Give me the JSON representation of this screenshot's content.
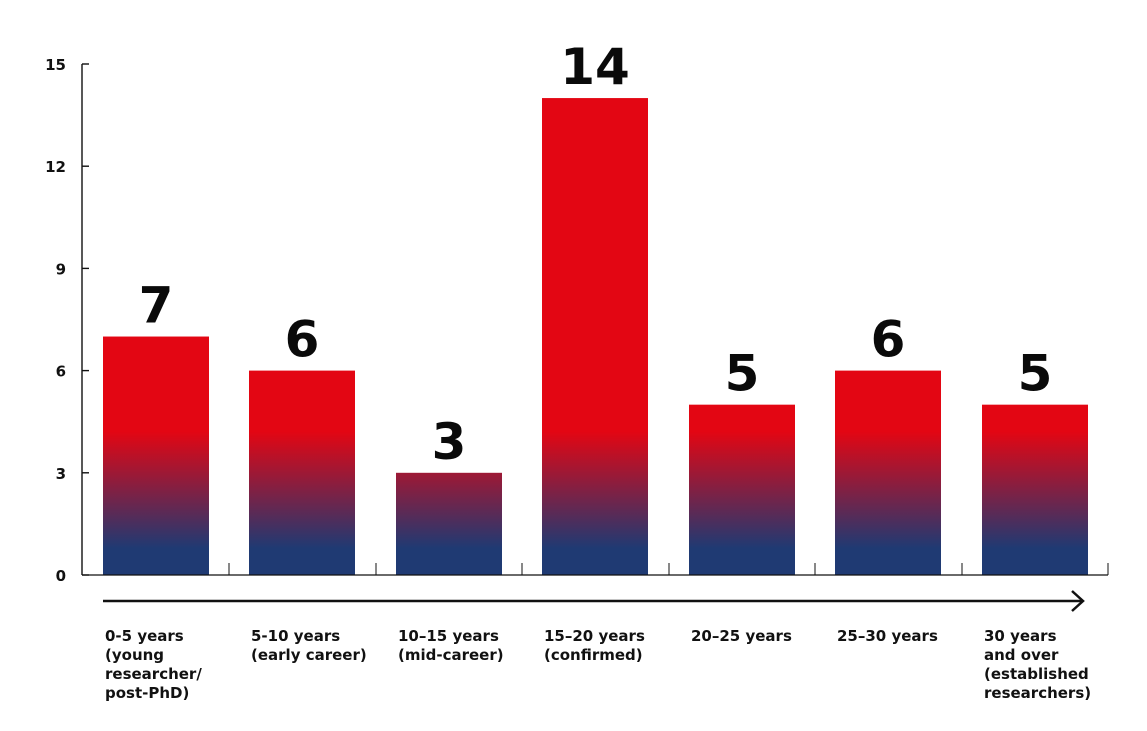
{
  "chart_data": {
    "type": "bar",
    "title": "",
    "xlabel": "",
    "ylabel": "",
    "ylim": [
      0,
      15
    ],
    "yticks": [
      "0",
      "3",
      "6",
      "9",
      "12",
      "15"
    ],
    "grid": false,
    "categories": [
      [
        "0-5 years",
        "(young",
        "researcher/",
        "post-PhD)"
      ],
      [
        "5-10 years",
        "(early career)"
      ],
      [
        "10–15 years",
        "(mid-career)"
      ],
      [
        "15–20 years",
        "(confirmed)"
      ],
      [
        "20–25 years"
      ],
      [
        "25–30 years"
      ],
      [
        "30 years",
        "and over",
        "(established",
        "researchers)"
      ]
    ],
    "values": [
      7,
      6,
      3,
      14,
      5,
      6,
      5
    ],
    "data_labels": [
      "7",
      "6",
      "3",
      "14",
      "5",
      "6",
      "5"
    ]
  },
  "colors": {
    "bar_top": "#e30613",
    "bar_bottom": "#1f3a73",
    "axis": "#111111",
    "text": "#0a0a0a"
  }
}
